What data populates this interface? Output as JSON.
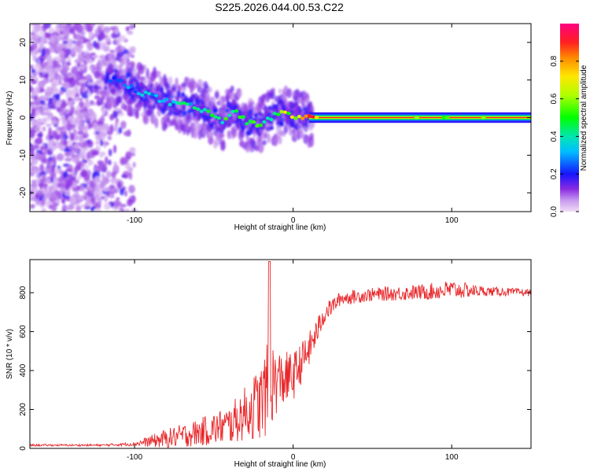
{
  "title": "S225.2026.044.00.53.C22",
  "chart_data": [
    {
      "type": "heatmap",
      "name": "spectrogram",
      "xlabel": "Height of straight line (km)",
      "ylabel": "Frequency (Hz)",
      "xlim": [
        -166,
        150
      ],
      "ylim": [
        -25,
        25
      ],
      "xticks": [
        -100,
        0,
        100
      ],
      "xtick_labels": [
        "-100",
        "0",
        "100"
      ],
      "yticks": [
        -20,
        -10,
        0,
        10,
        20
      ],
      "ytick_labels": [
        "-20",
        "-10",
        "0",
        "10",
        "20"
      ],
      "ridge": {
        "description": "dominant frequency vs height",
        "x": [
          -115,
          -105,
          -95,
          -85,
          -75,
          -65,
          -55,
          -45,
          -38,
          -30,
          -22,
          -15,
          -8,
          0,
          10,
          20,
          40,
          60,
          80,
          100,
          120,
          150
        ],
        "y": [
          10,
          9,
          6.5,
          5,
          3.5,
          3,
          2,
          -1.5,
          2,
          -1,
          -2,
          0,
          1,
          0.5,
          0,
          0,
          0,
          0,
          0,
          0,
          0,
          0
        ],
        "amplitude": [
          0.25,
          0.3,
          0.35,
          0.35,
          0.45,
          0.4,
          0.45,
          0.5,
          0.5,
          0.6,
          0.6,
          0.55,
          0.65,
          0.7,
          0.9,
          0.95,
          0.95,
          0.95,
          0.95,
          0.9,
          0.95,
          0.95
        ]
      },
      "noise_region_x": [
        -166,
        -110
      ]
    },
    {
      "type": "colorbar",
      "name": "amplitude-colorbar",
      "label": "Normalized spectral amplitude",
      "range": [
        0,
        1
      ],
      "ticks": [
        0.0,
        0.2,
        0.4,
        0.6,
        0.8
      ],
      "tick_labels": [
        "0.0",
        "0.2",
        "0.4",
        "0.6",
        "0.8"
      ]
    },
    {
      "type": "line",
      "name": "snr",
      "xlabel": "Height of straight line (km)",
      "ylabel": "SNR (10 * v/v)",
      "xlim": [
        -166,
        150
      ],
      "ylim": [
        0,
        970
      ],
      "xticks": [
        -100,
        0,
        100
      ],
      "xtick_labels": [
        "-100",
        "0",
        "100"
      ],
      "yticks": [
        0,
        200,
        400,
        600,
        800
      ],
      "ytick_labels": [
        "0",
        "200",
        "400",
        "600",
        "800"
      ],
      "color": "#e8272a",
      "envelope": {
        "x": [
          -166,
          -120,
          -100,
          -80,
          -60,
          -40,
          -30,
          -20,
          -15,
          -10,
          0,
          10,
          20,
          30,
          50,
          80,
          100,
          120,
          150
        ],
        "base": [
          15,
          15,
          20,
          35,
          60,
          90,
          140,
          180,
          250,
          300,
          330,
          480,
          680,
          760,
          780,
          790,
          800,
          800,
          795
        ],
        "spread": [
          10,
          10,
          20,
          100,
          140,
          200,
          280,
          400,
          500,
          320,
          250,
          180,
          100,
          70,
          70,
          80,
          100,
          50,
          35
        ]
      }
    }
  ]
}
